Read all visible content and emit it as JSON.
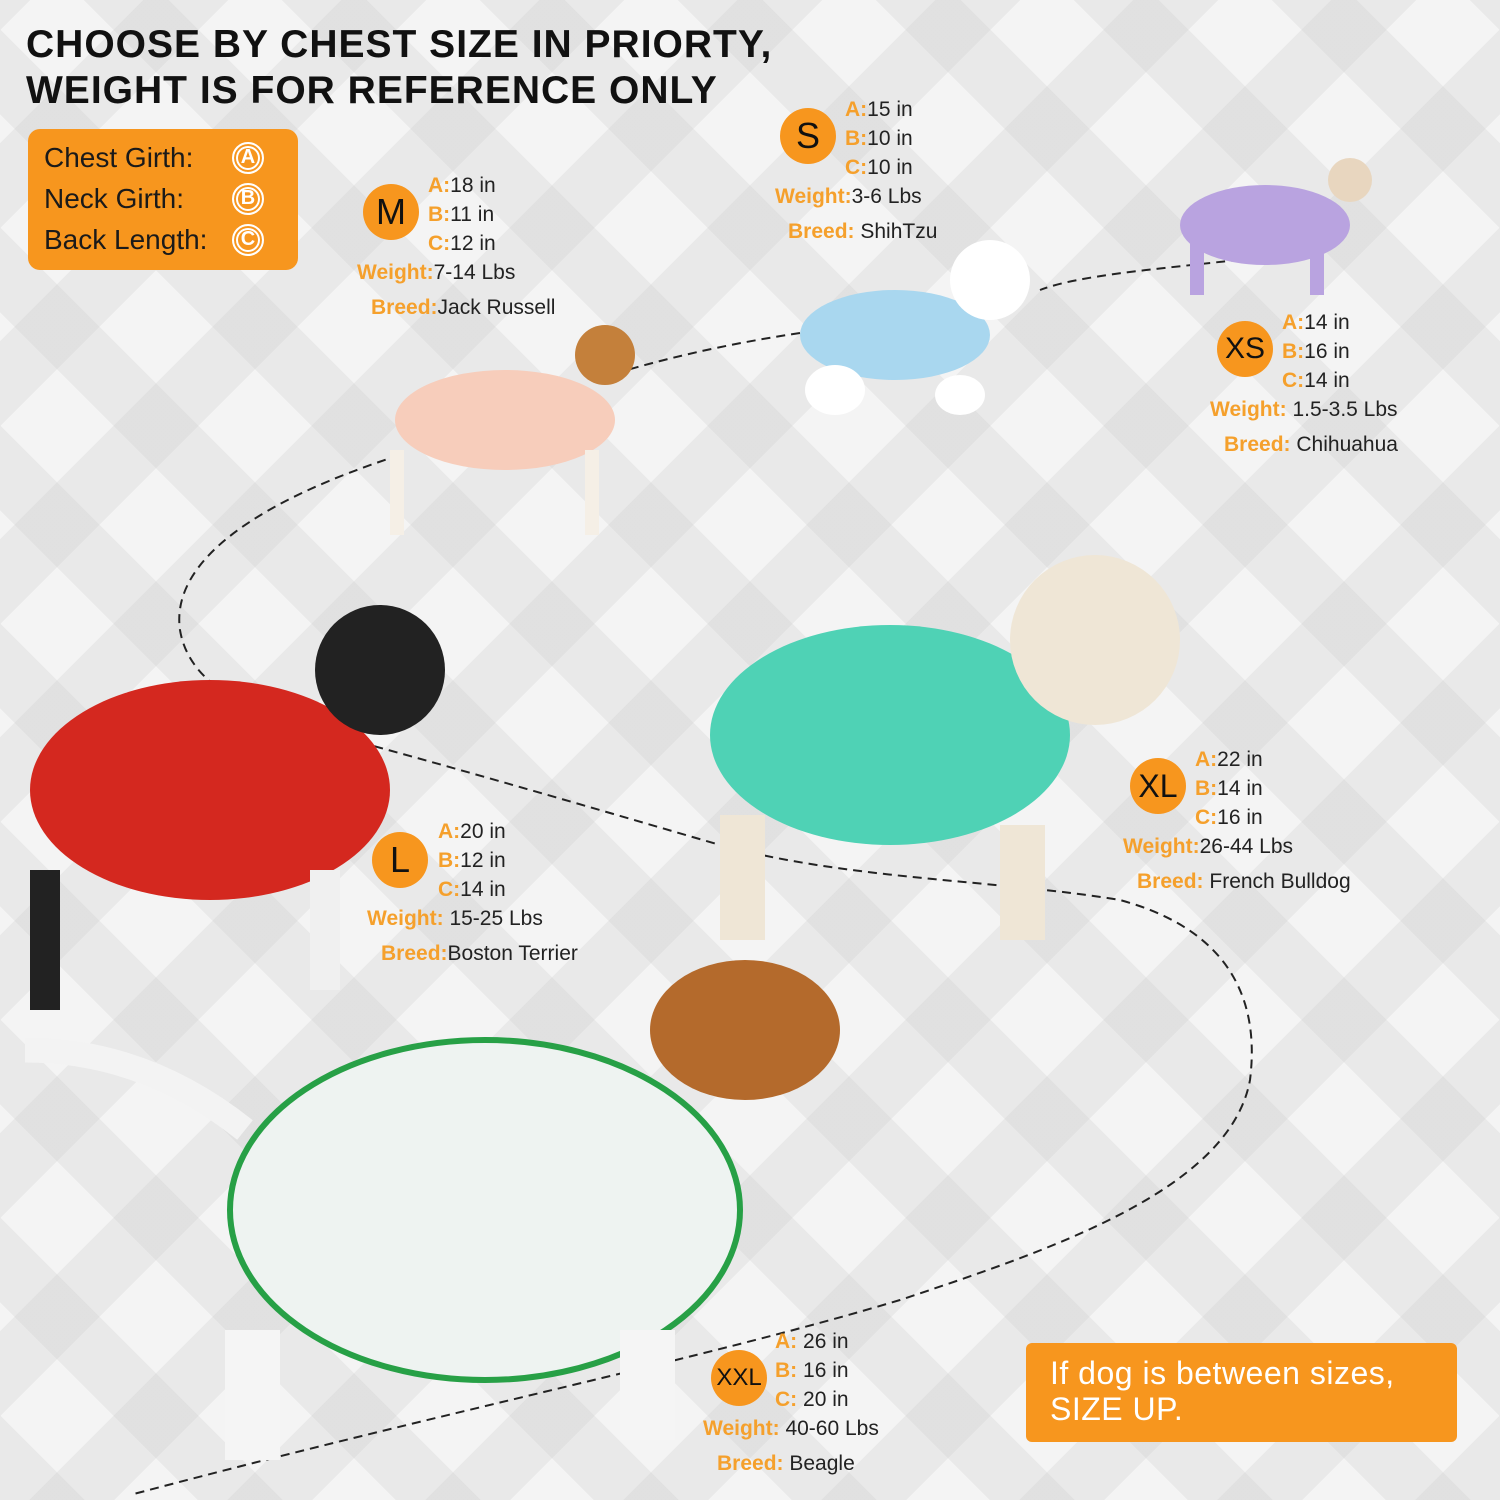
{
  "title": {
    "line1": "CHOOSE BY CHEST SIZE IN PRIORTY,",
    "line2": "WEIGHT IS FOR REFERENCE ONLY"
  },
  "legend": [
    {
      "label": "Chest Girth:",
      "mark": "A"
    },
    {
      "label": "Neck Girth:",
      "mark": "B"
    },
    {
      "label": "Back Length:",
      "mark": "C"
    }
  ],
  "labels": {
    "a": "A:",
    "b": "B:",
    "c": "C:",
    "weight": "Weight:",
    "breed": "Breed:"
  },
  "sizes": {
    "s": {
      "size": "S",
      "a": "15 in",
      "b": "10 in",
      "c": "10 in",
      "weight": "3-6 Lbs",
      "breed": "ShihTzu"
    },
    "m": {
      "size": "M",
      "a": "18 in",
      "b": "11 in",
      "c": "12 in",
      "weight": "7-14 Lbs",
      "breed": "Jack Russell"
    },
    "xs": {
      "size": "XS",
      "a": "14 in",
      "b": "16 in",
      "c": "14 in",
      "weight": "1.5-3.5 Lbs",
      "breed": "Chihuahua"
    },
    "l": {
      "size": "L",
      "a": "20 in",
      "b": "12 in",
      "c": "14 in",
      "weight": "15-25 Lbs",
      "breed": "Boston Terrier"
    },
    "xl": {
      "size": "XL",
      "a": "22 in",
      "b": "14 in",
      "c": "16 in",
      "weight": "26-44 Lbs",
      "breed": "French Bulldog"
    },
    "xxl": {
      "size": "XXL",
      "a": "26 in",
      "b": "16 in",
      "c": "20 in",
      "weight": "40-60 Lbs",
      "breed": "Beagle"
    }
  },
  "tip": {
    "line1": "If dog is between sizes,",
    "line2": "SIZE UP."
  },
  "colors": {
    "accent": "#f7961e",
    "label": "#f5a02c"
  }
}
